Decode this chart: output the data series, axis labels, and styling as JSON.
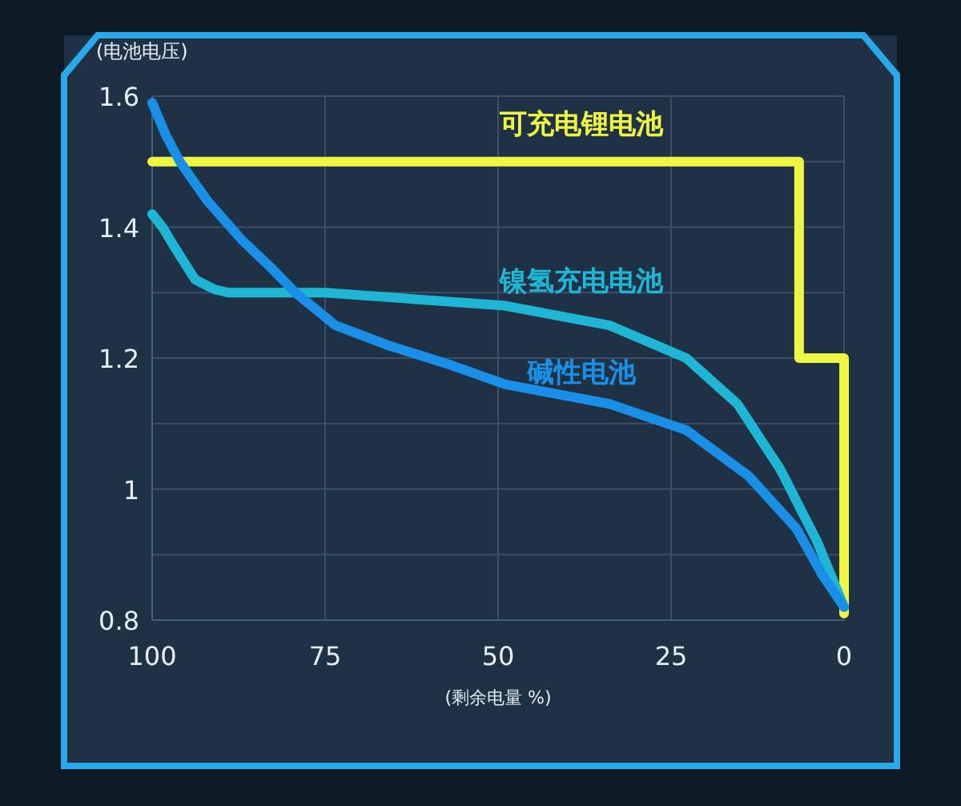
{
  "chart_data": {
    "type": "line",
    "xlabel": "(剩余电量 %)",
    "ylabel": "(电池电压)",
    "xlim": [
      100,
      0
    ],
    "ylim": [
      0.8,
      1.6
    ],
    "xticks": [
      100,
      75,
      50,
      25,
      0
    ],
    "yticks": [
      {
        "value": 0.8,
        "label": "0.8"
      },
      {
        "value": 0.9,
        "label": null
      },
      {
        "value": 1,
        "label": "1"
      },
      {
        "value": 1.1,
        "label": null
      },
      {
        "value": 1.2,
        "label": "1.2"
      },
      {
        "value": 1.3,
        "label": null
      },
      {
        "value": 1.4,
        "label": "1.4"
      },
      {
        "value": 1.5,
        "label": null
      },
      {
        "value": 1.6,
        "label": "1.6"
      }
    ],
    "grid": true,
    "series": [
      {
        "name": "可充电锂电池",
        "color": "#eef542",
        "x": [
          100,
          6.5,
          6.5,
          0,
          0
        ],
        "values": [
          1.5,
          1.5,
          1.2,
          1.2,
          0.81
        ]
      },
      {
        "name": "镍氢充电电池",
        "color": "#1fb6d6",
        "x": [
          100,
          98.5,
          96.8,
          95,
          93.8,
          91,
          89,
          75,
          49,
          33.9,
          22.8,
          15.4,
          9.2,
          3.9,
          0
        ],
        "values": [
          1.42,
          1.4,
          1.37,
          1.34,
          1.32,
          1.305,
          1.3,
          1.3,
          1.28,
          1.25,
          1.2,
          1.13,
          1.03,
          0.92,
          0.82
        ]
      },
      {
        "name": "碱性电池",
        "color": "#1a8fe8",
        "x": [
          100,
          98,
          96,
          92,
          87,
          83,
          79.3,
          73.5,
          66,
          57,
          49,
          33.9,
          22.8,
          13.8,
          6.9,
          3.2,
          0
        ],
        "values": [
          1.59,
          1.54,
          1.5,
          1.44,
          1.38,
          1.34,
          1.3,
          1.25,
          1.22,
          1.19,
          1.16,
          1.13,
          1.09,
          1.02,
          0.94,
          0.87,
          0.82
        ]
      }
    ]
  }
}
